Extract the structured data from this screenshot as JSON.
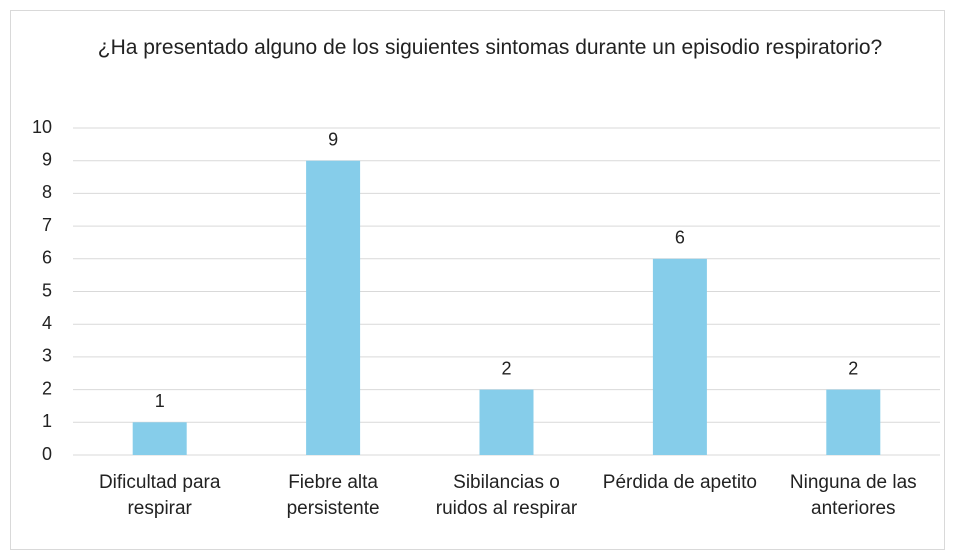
{
  "chart_data": {
    "type": "bar",
    "title": "¿Ha presentado alguno de los siguientes sintomas durante un episodio respiratorio?",
    "categories": [
      "Dificultad para respirar",
      "Fiebre alta persistente",
      "Sibilancias o ruidos al respirar",
      "Pérdida de apetito",
      "Ninguna de las anteriores"
    ],
    "values": [
      1,
      9,
      2,
      6,
      2
    ],
    "color": "#86cdea",
    "ylim": [
      0,
      10
    ],
    "yticks": [
      0,
      1,
      2,
      3,
      4,
      5,
      6,
      7,
      8,
      9,
      10
    ],
    "grid": true
  }
}
